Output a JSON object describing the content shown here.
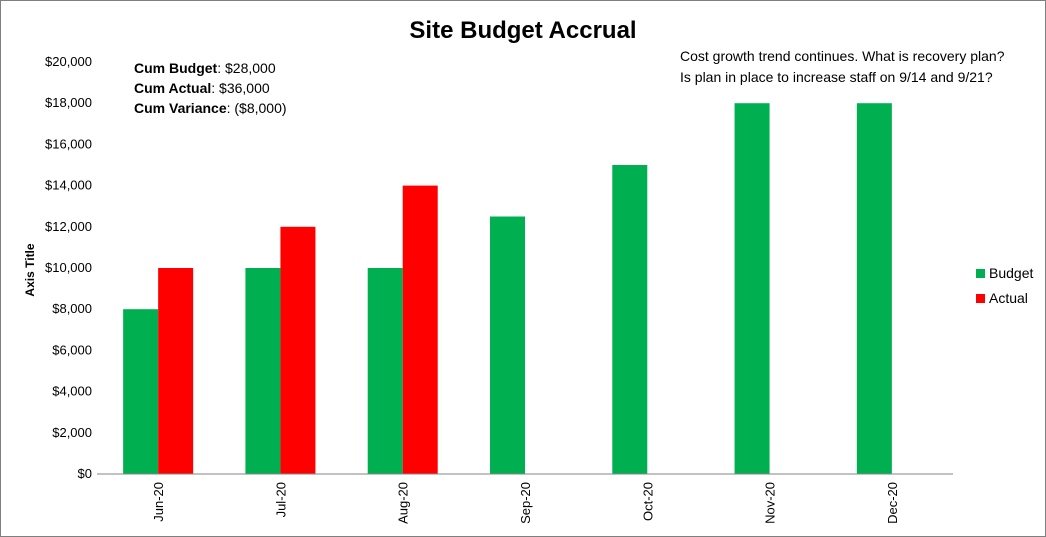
{
  "chart_data": {
    "type": "bar",
    "title": "Site Budget Accrual",
    "xlabel": "",
    "ylabel": "Axis Title",
    "categories": [
      "Jun-20",
      "Jul-20",
      "Aug-20",
      "Sep-20",
      "Oct-20",
      "Nov-20",
      "Dec-20"
    ],
    "series": [
      {
        "name": "Budget",
        "color": "#00b050",
        "values": [
          8000,
          10000,
          10000,
          12500,
          15000,
          18000,
          18000
        ]
      },
      {
        "name": "Actual",
        "color": "#ff0000",
        "values": [
          10000,
          12000,
          14000,
          null,
          null,
          null,
          null
        ]
      }
    ],
    "ylim": [
      0,
      20000
    ],
    "yticks": [
      "$0",
      "$2,000",
      "$4,000",
      "$6,000",
      "$8,000",
      "$10,000",
      "$12,000",
      "$14,000",
      "$16,000",
      "$18,000",
      "$20,000"
    ],
    "grid": false,
    "legend_position": "right"
  },
  "summary": {
    "cum_budget_label": "Cum Budget",
    "cum_budget_value": ": $28,000",
    "cum_actual_label": "Cum Actual",
    "cum_actual_value": ": $36,000",
    "cum_variance_label": "Cum Variance",
    "cum_variance_value": ": ($8,000)"
  },
  "notes": {
    "line1": "Cost growth trend continues.  What is recovery plan?",
    "line2": "Is plan in place to increase staff on 9/14 and 9/21?"
  }
}
